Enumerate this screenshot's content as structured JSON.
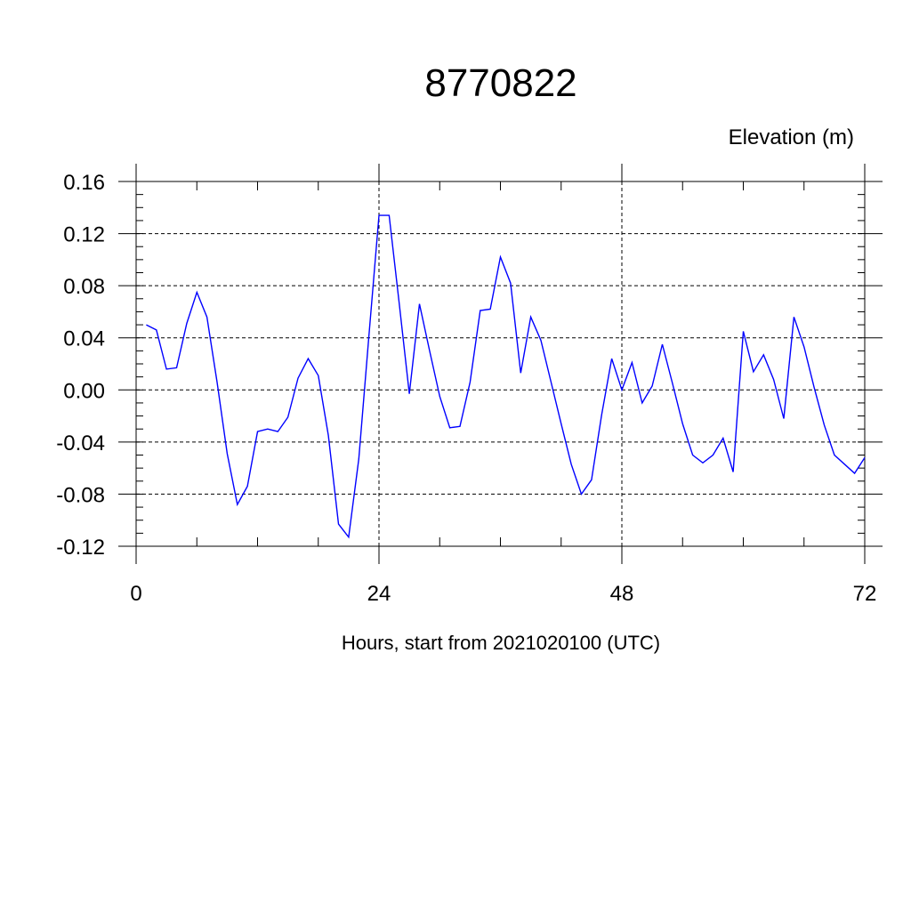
{
  "chart_data": {
    "type": "line",
    "title": "8770822",
    "ylabel": "Elevation (m)",
    "xlabel": "Hours, start from 2021020100 (UTC)",
    "xlim": [
      0,
      72
    ],
    "ylim": [
      -0.12,
      0.16
    ],
    "x_ticks": [
      0,
      24,
      48,
      72
    ],
    "x_tick_labels": [
      "0",
      "24",
      "48",
      "72"
    ],
    "y_ticks": [
      -0.12,
      -0.08,
      -0.04,
      0.0,
      0.04,
      0.08,
      0.12,
      0.16
    ],
    "y_tick_labels": [
      "-0.12",
      "-0.08",
      "-0.04",
      "0.00",
      "0.04",
      "0.08",
      "0.12",
      "0.16"
    ],
    "grid": true,
    "colors": {
      "line": "#0000ff",
      "axis": "#000000"
    },
    "series": [
      {
        "x": [
          1,
          2,
          3,
          4,
          5,
          6,
          7,
          8,
          9,
          10,
          11,
          12,
          13,
          14,
          15,
          16,
          17,
          18,
          19,
          20,
          21,
          22,
          23,
          24,
          25,
          26,
          27,
          28,
          29,
          30,
          31,
          32,
          33,
          34,
          35,
          36,
          37,
          38,
          39,
          40,
          41,
          42,
          43,
          44,
          45,
          46,
          47,
          48,
          49,
          50,
          51,
          52,
          53,
          54,
          55,
          56,
          57,
          58,
          59,
          60,
          61,
          62,
          63,
          64,
          65,
          66,
          67,
          68,
          69,
          70,
          71,
          72
        ],
        "y": [
          0.05,
          0.046,
          0.016,
          0.017,
          0.051,
          0.075,
          0.056,
          0.006,
          -0.049,
          -0.088,
          -0.074,
          -0.032,
          -0.03,
          -0.032,
          -0.021,
          0.009,
          0.024,
          0.011,
          -0.035,
          -0.103,
          -0.113,
          -0.053,
          0.041,
          0.134,
          0.134,
          0.066,
          -0.003,
          0.066,
          0.03,
          -0.005,
          -0.029,
          -0.028,
          0.006,
          0.061,
          0.062,
          0.102,
          0.082,
          0.013,
          0.056,
          0.038,
          0.006,
          -0.026,
          -0.057,
          -0.08,
          -0.069,
          -0.019,
          0.024,
          0.0,
          0.021,
          -0.01,
          0.003,
          0.035,
          0.005,
          -0.026,
          -0.05,
          -0.056,
          -0.05,
          -0.037,
          -0.063,
          0.045,
          0.014,
          0.027,
          0.008,
          -0.022,
          0.056,
          0.033,
          0.002,
          -0.027,
          -0.05,
          -0.057,
          -0.064,
          -0.052
        ]
      }
    ]
  }
}
